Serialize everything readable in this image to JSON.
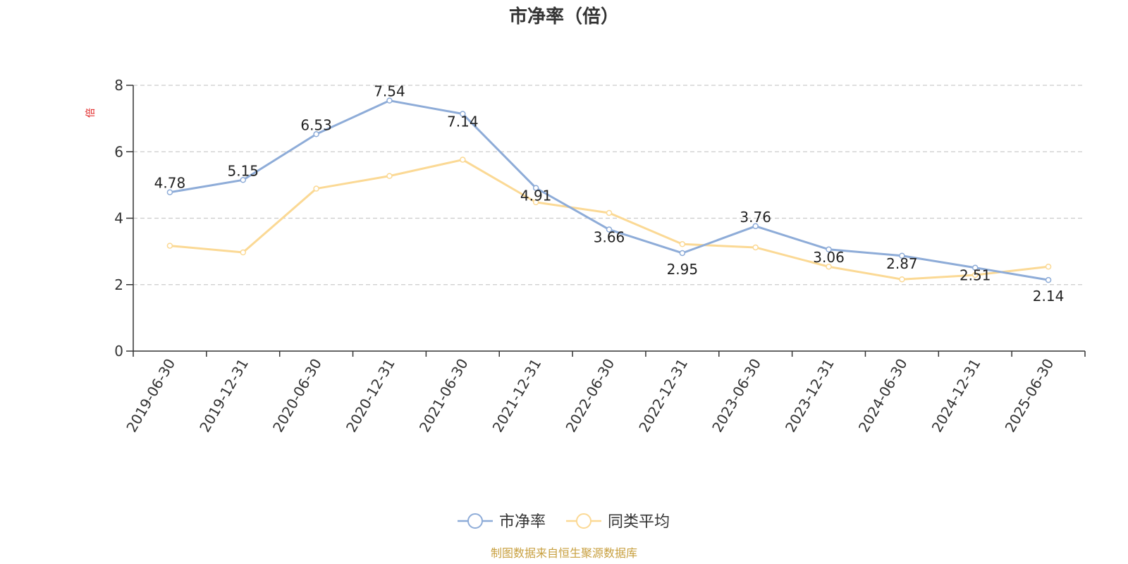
{
  "chart_data": {
    "type": "line",
    "title": "市净率（倍）",
    "ylabel": "倍",
    "ylim": [
      0,
      8
    ],
    "yticks": [
      0,
      2,
      4,
      6,
      8
    ],
    "grid": true,
    "legend": "bottom-center",
    "categories": [
      "2019-06-30",
      "2019-12-31",
      "2020-06-30",
      "2020-12-31",
      "2021-06-30",
      "2021-12-31",
      "2022-06-30",
      "2022-12-31",
      "2023-06-30",
      "2023-12-31",
      "2024-06-30",
      "2024-12-31",
      "2025-06-30"
    ],
    "series": [
      {
        "name": "市净率",
        "color": "#8eacd8",
        "values": [
          4.78,
          5.15,
          6.53,
          7.54,
          7.14,
          4.91,
          3.66,
          2.95,
          3.76,
          3.06,
          2.87,
          2.51,
          2.14
        ],
        "labels": [
          "4.78",
          "5.15",
          "6.53",
          "7.54",
          "7.14",
          "4.91",
          "3.66",
          "2.95",
          "3.76",
          "3.06",
          "2.87",
          "2.51",
          "2.14"
        ]
      },
      {
        "name": "同类平均",
        "color": "#fbd995",
        "values": [
          3.17,
          2.97,
          4.89,
          5.27,
          5.76,
          4.48,
          4.16,
          3.22,
          3.12,
          2.54,
          2.16,
          2.29,
          2.54
        ]
      }
    ]
  },
  "footer": {
    "source": "制图数据来自恒生聚源数据库"
  }
}
